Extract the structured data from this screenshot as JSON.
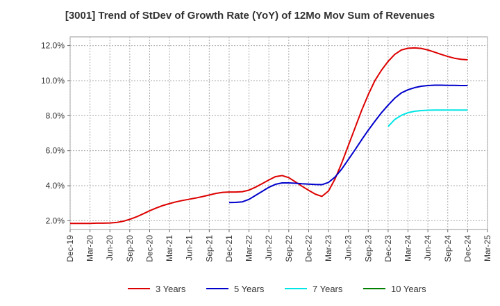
{
  "chart_data": {
    "type": "line",
    "title": "[3001]  Trend of StDev of Growth Rate (YoY) of 12Mo Mov Sum of Revenues",
    "xlabel": "",
    "ylabel": "",
    "x_tick_labels": [
      "Dec-19",
      "Mar-20",
      "Jun-20",
      "Sep-20",
      "Dec-20",
      "Mar-21",
      "Jun-21",
      "Sep-21",
      "Dec-21",
      "Mar-22",
      "Jun-22",
      "Sep-22",
      "Dec-22",
      "Mar-23",
      "Jun-23",
      "Sep-23",
      "Dec-23",
      "Mar-24",
      "Jun-24",
      "Sep-24",
      "Dec-24",
      "Mar-25"
    ],
    "y_tick_labels": [
      "2.0%",
      "4.0%",
      "6.0%",
      "8.0%",
      "10.0%",
      "12.0%"
    ],
    "y_ticks": [
      2,
      4,
      6,
      8,
      10,
      12
    ],
    "ylim": [
      1.5,
      12.5
    ],
    "grid": true,
    "legend_position": "bottom",
    "series": [
      {
        "name": "3 Years",
        "color": "#dd0000",
        "values": [
          1.85,
          1.85,
          1.85,
          1.85,
          1.86,
          1.86,
          1.87,
          1.9,
          1.97,
          2.08,
          2.22,
          2.39,
          2.57,
          2.73,
          2.87,
          2.98,
          3.08,
          3.16,
          3.23,
          3.3,
          3.38,
          3.47,
          3.56,
          3.62,
          3.64,
          3.64,
          3.66,
          3.75,
          3.92,
          4.12,
          4.33,
          4.52,
          4.58,
          4.46,
          4.22,
          3.97,
          3.74,
          3.52,
          3.39,
          3.7,
          4.4,
          5.3,
          6.3,
          7.3,
          8.3,
          9.2,
          10.0,
          10.6,
          11.1,
          11.5,
          11.75,
          11.85,
          11.87,
          11.84,
          11.75,
          11.63,
          11.5,
          11.38,
          11.28,
          11.22,
          11.19
        ]
      },
      {
        "name": "5 Years",
        "color": "#0000cc",
        "values": [
          null,
          null,
          null,
          null,
          null,
          null,
          null,
          null,
          null,
          null,
          null,
          null,
          null,
          null,
          null,
          null,
          null,
          null,
          null,
          null,
          null,
          null,
          null,
          null,
          3.04,
          3.05,
          3.08,
          3.22,
          3.45,
          3.68,
          3.91,
          4.08,
          4.16,
          4.16,
          4.14,
          4.11,
          4.09,
          4.07,
          4.06,
          4.19,
          4.5,
          4.95,
          5.5,
          6.05,
          6.62,
          7.17,
          7.68,
          8.17,
          8.6,
          9.0,
          9.3,
          9.48,
          9.6,
          9.68,
          9.72,
          9.74,
          9.74,
          9.73,
          9.73,
          9.72,
          9.72
        ]
      },
      {
        "name": "7 Years",
        "color": "#00e5e5",
        "values": [
          null,
          null,
          null,
          null,
          null,
          null,
          null,
          null,
          null,
          null,
          null,
          null,
          null,
          null,
          null,
          null,
          null,
          null,
          null,
          null,
          null,
          null,
          null,
          null,
          null,
          null,
          null,
          null,
          null,
          null,
          null,
          null,
          null,
          null,
          null,
          null,
          null,
          null,
          null,
          null,
          null,
          null,
          null,
          null,
          null,
          null,
          null,
          null,
          7.38,
          7.78,
          8.02,
          8.17,
          8.25,
          8.29,
          8.31,
          8.32,
          8.32,
          8.32,
          8.32,
          8.32,
          8.32
        ]
      },
      {
        "name": "10 Years",
        "color": "#008000",
        "values": []
      }
    ]
  }
}
